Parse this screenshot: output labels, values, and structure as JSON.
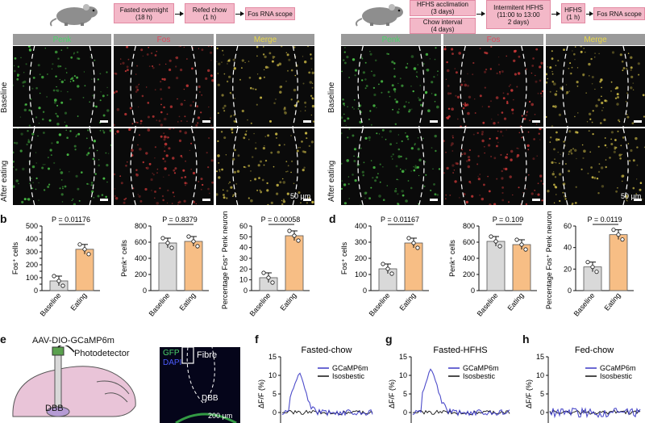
{
  "flow_left": {
    "steps": [
      "Fasted overnight\n(18 h)",
      "Refed chow\n(1 h)",
      "Fos RNA scope"
    ]
  },
  "flow_right": {
    "steps": [
      "HFHS acclimation\n(3 days)",
      "Chow interval\n(4 days)",
      "Intermitent HFHS\n(11:00 to 13:00\n2 days)",
      "HFHS\n(1 h)",
      "Fos RNA scope"
    ]
  },
  "micro_left": {
    "columns": [
      "Penk",
      "Fos",
      "Merge"
    ],
    "rows": [
      "Baseline",
      "After eating"
    ],
    "scale": "50 μm"
  },
  "micro_right": {
    "columns": [
      "Penk",
      "Fos",
      "Merge"
    ],
    "rows": [
      "Baseline",
      "After eating"
    ],
    "scale": "50 μm"
  },
  "panel_letters": {
    "b": "b",
    "d": "d",
    "e": "e",
    "f": "f",
    "g": "g",
    "h": "h"
  },
  "panel_e": {
    "virus": "AAV-DIO-GCaMP6m",
    "detector": "Photodetector",
    "region": "DBB",
    "stain1": "GFP",
    "stain2": "DAPI",
    "fibre": "Fibre",
    "region2": "DBB",
    "scale": "200 μm"
  },
  "chart_data": [
    {
      "panel": "b",
      "type": "bar",
      "ylabel": "Fos⁺ cells",
      "categories": [
        "Baseline",
        "Eating"
      ],
      "values": [
        75,
        320
      ],
      "ylim": [
        0,
        500
      ],
      "yticks": [
        0,
        50,
        100,
        150,
        200,
        250,
        300,
        350,
        400,
        450,
        500
      ],
      "pvalue": "P = 0.01176",
      "colors": [
        "#d9d9d9",
        "#f7be85"
      ]
    },
    {
      "panel": "b",
      "type": "bar",
      "ylabel": "Penk⁺ cells",
      "categories": [
        "Baseline",
        "Eating"
      ],
      "values": [
        590,
        610
      ],
      "ylim": [
        0,
        800
      ],
      "yticks": [
        0,
        200,
        400,
        600,
        800
      ],
      "pvalue": "P = 0.8379",
      "colors": [
        "#d9d9d9",
        "#f7be85"
      ]
    },
    {
      "panel": "b",
      "type": "bar",
      "ylabel": "Percentage Fos⁺ Penk neurons",
      "categories": [
        "Baseline",
        "Eating"
      ],
      "values": [
        12,
        51
      ],
      "ylim": [
        0,
        60
      ],
      "yticks": [
        0,
        10,
        20,
        30,
        40,
        50,
        60
      ],
      "pvalue": "P = 0.00058",
      "colors": [
        "#d9d9d9",
        "#f7be85"
      ]
    },
    {
      "panel": "d",
      "type": "bar",
      "ylabel": "Fos⁺ cells",
      "categories": [
        "Baseline",
        "Eating"
      ],
      "values": [
        135,
        295
      ],
      "ylim": [
        0,
        400
      ],
      "yticks": [
        0,
        100,
        200,
        300,
        400
      ],
      "pvalue": "P = 0.01167",
      "colors": [
        "#d9d9d9",
        "#f7be85"
      ]
    },
    {
      "panel": "d",
      "type": "bar",
      "ylabel": "Penk⁺ cells",
      "categories": [
        "Baseline",
        "Eating"
      ],
      "values": [
        610,
        570
      ],
      "ylim": [
        0,
        800
      ],
      "yticks": [
        0,
        200,
        400,
        600,
        800
      ],
      "pvalue": "P = 0.109",
      "colors": [
        "#d9d9d9",
        "#f7be85"
      ]
    },
    {
      "panel": "d",
      "type": "bar",
      "ylabel": "Percentage Fos⁺ Penk neurons",
      "categories": [
        "Baseline",
        "Eating"
      ],
      "values": [
        22,
        52
      ],
      "ylim": [
        0,
        60
      ],
      "yticks": [
        0,
        20,
        40,
        60
      ],
      "pvalue": "P = 0.0119",
      "colors": [
        "#d9d9d9",
        "#f7be85"
      ]
    },
    {
      "panel": "f",
      "type": "line",
      "title": "Fasted-chow",
      "ylabel": "ΔF/F (%)",
      "ylim": [
        -5,
        15
      ],
      "yticks": [
        -5,
        0,
        5,
        10,
        15
      ],
      "series": [
        {
          "name": "GCaMP6m",
          "color": "#3a38c4"
        },
        {
          "name": "Isosbestic",
          "color": "#111111"
        }
      ]
    },
    {
      "panel": "g",
      "type": "line",
      "title": "Fasted-HFHS",
      "ylabel": "ΔF/F (%)",
      "ylim": [
        -5,
        15
      ],
      "yticks": [
        -5,
        0,
        5,
        10,
        15
      ],
      "series": [
        {
          "name": "GCaMP6m",
          "color": "#3a38c4"
        },
        {
          "name": "Isosbestic",
          "color": "#111111"
        }
      ]
    },
    {
      "panel": "h",
      "type": "line",
      "title": "Fed-chow",
      "ylabel": "ΔF/F (%)",
      "ylim": [
        -5,
        15
      ],
      "yticks": [
        -5,
        0,
        5,
        10,
        15
      ],
      "series": [
        {
          "name": "GCaMP6m",
          "color": "#3a38c4"
        },
        {
          "name": "Isosbestic",
          "color": "#111111"
        }
      ]
    }
  ]
}
